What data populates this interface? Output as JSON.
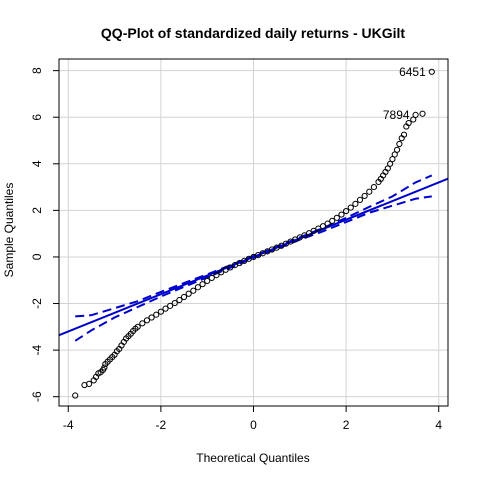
{
  "chart_data": {
    "type": "scatter",
    "title": "QQ-Plot of standardized daily returns - UKGilt",
    "xlabel": "Theoretical Quantiles",
    "ylabel": "Sample Quantiles",
    "xlim": [
      -4.2,
      4.2
    ],
    "ylim": [
      -6.4,
      8.5
    ],
    "x_ticks": [
      -4,
      -2,
      0,
      2,
      4
    ],
    "y_ticks": [
      -6,
      -4,
      -2,
      0,
      2,
      4,
      6,
      8
    ],
    "grid": true,
    "legend": "none",
    "colors": {
      "points": "#000000",
      "fit_line": "#0000cd",
      "envelope": "#0000cd",
      "grid": "#d3d3d3"
    },
    "reference_line": {
      "intercept": 0.0,
      "slope": 0.8
    },
    "confidence_envelope": {
      "x": [
        -3.85,
        -3.5,
        -3.0,
        -2.5,
        -2.0,
        -1.5,
        -1.0,
        0.0,
        1.0,
        1.5,
        2.0,
        2.5,
        3.0,
        3.5,
        3.85
      ],
      "upper": [
        -2.55,
        -2.5,
        -2.2,
        -1.9,
        -1.5,
        -1.12,
        -0.75,
        0.04,
        0.84,
        1.24,
        1.68,
        2.15,
        2.6,
        3.2,
        3.5
      ],
      "lower": [
        -3.6,
        -3.15,
        -2.6,
        -2.15,
        -1.7,
        -1.28,
        -0.88,
        -0.04,
        0.74,
        1.1,
        1.5,
        1.9,
        2.2,
        2.5,
        2.6
      ]
    },
    "sample_points": [
      [
        -3.85,
        -5.95
      ],
      [
        -3.65,
        -5.5
      ],
      [
        -3.55,
        -5.45
      ],
      [
        -3.45,
        -5.3
      ],
      [
        -3.4,
        -5.15
      ],
      [
        -3.35,
        -5.0
      ],
      [
        -3.3,
        -4.95
      ],
      [
        -3.25,
        -4.85
      ],
      [
        -3.22,
        -4.75
      ],
      [
        -3.2,
        -4.6
      ],
      [
        -3.15,
        -4.5
      ],
      [
        -3.1,
        -4.4
      ],
      [
        -3.05,
        -4.3
      ],
      [
        -3.0,
        -4.2
      ],
      [
        -2.95,
        -4.05
      ],
      [
        -2.9,
        -3.95
      ],
      [
        -2.85,
        -3.8
      ],
      [
        -2.8,
        -3.65
      ],
      [
        -2.75,
        -3.5
      ],
      [
        -2.7,
        -3.4
      ],
      [
        -2.65,
        -3.3
      ],
      [
        -2.6,
        -3.18
      ],
      [
        -2.55,
        -3.08
      ],
      [
        -2.5,
        -3.0
      ],
      [
        -2.4,
        -2.85
      ],
      [
        -2.3,
        -2.72
      ],
      [
        -2.2,
        -2.6
      ],
      [
        -2.1,
        -2.48
      ],
      [
        -2.0,
        -2.35
      ],
      [
        -1.9,
        -2.22
      ],
      [
        -1.8,
        -2.1
      ],
      [
        -1.7,
        -1.98
      ],
      [
        -1.6,
        -1.85
      ],
      [
        -1.5,
        -1.72
      ],
      [
        -1.4,
        -1.58
      ],
      [
        -1.3,
        -1.45
      ],
      [
        -1.2,
        -1.3
      ],
      [
        -1.1,
        -1.17
      ],
      [
        -1.0,
        -1.03
      ],
      [
        -0.9,
        -0.9
      ],
      [
        -0.8,
        -0.78
      ],
      [
        -0.7,
        -0.66
      ],
      [
        -0.6,
        -0.55
      ],
      [
        -0.5,
        -0.45
      ],
      [
        -0.4,
        -0.35
      ],
      [
        -0.3,
        -0.26
      ],
      [
        -0.2,
        -0.17
      ],
      [
        -0.1,
        -0.08
      ],
      [
        0.0,
        0.0
      ],
      [
        0.1,
        0.08
      ],
      [
        0.2,
        0.16
      ],
      [
        0.3,
        0.24
      ],
      [
        0.4,
        0.32
      ],
      [
        0.5,
        0.4
      ],
      [
        0.6,
        0.48
      ],
      [
        0.7,
        0.57
      ],
      [
        0.8,
        0.66
      ],
      [
        0.9,
        0.75
      ],
      [
        1.0,
        0.84
      ],
      [
        1.1,
        0.93
      ],
      [
        1.2,
        1.02
      ],
      [
        1.3,
        1.12
      ],
      [
        1.4,
        1.22
      ],
      [
        1.5,
        1.32
      ],
      [
        1.6,
        1.43
      ],
      [
        1.7,
        1.55
      ],
      [
        1.8,
        1.68
      ],
      [
        1.9,
        1.82
      ],
      [
        2.0,
        1.97
      ],
      [
        2.1,
        2.12
      ],
      [
        2.2,
        2.28
      ],
      [
        2.3,
        2.45
      ],
      [
        2.4,
        2.62
      ],
      [
        2.5,
        2.8
      ],
      [
        2.6,
        3.0
      ],
      [
        2.7,
        3.22
      ],
      [
        2.75,
        3.35
      ],
      [
        2.8,
        3.5
      ],
      [
        2.85,
        3.65
      ],
      [
        2.9,
        3.8
      ],
      [
        2.95,
        4.0
      ],
      [
        3.0,
        4.2
      ],
      [
        3.05,
        4.4
      ],
      [
        3.1,
        4.6
      ],
      [
        3.15,
        4.85
      ],
      [
        3.2,
        5.1
      ],
      [
        3.25,
        5.25
      ],
      [
        3.3,
        5.6
      ],
      [
        3.35,
        5.75
      ],
      [
        3.45,
        5.9
      ],
      [
        3.5,
        6.1
      ],
      [
        3.65,
        6.15
      ],
      [
        3.85,
        7.95
      ]
    ],
    "annotations": [
      {
        "label": "6451",
        "x": 3.85,
        "y": 7.95
      },
      {
        "label": "7894",
        "x": 3.5,
        "y": 6.1
      }
    ]
  }
}
